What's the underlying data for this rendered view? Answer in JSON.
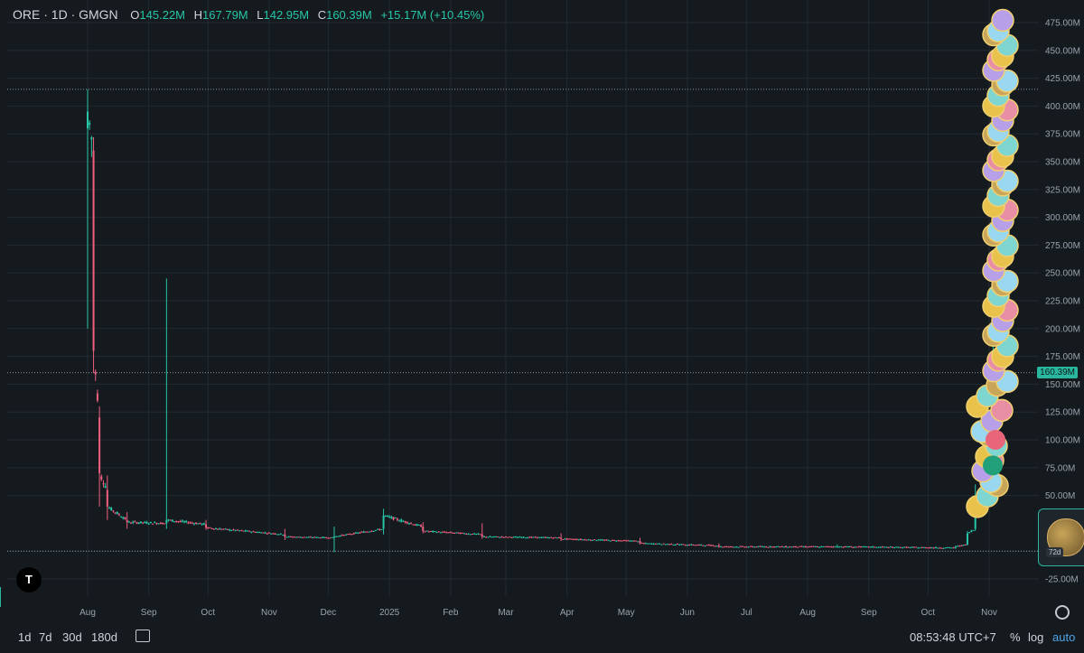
{
  "header": {
    "symbol": "ORE · 1D · GMGN",
    "o_label": "O",
    "o_value": "145.22M",
    "h_label": "H",
    "h_value": "167.79M",
    "l_label": "L",
    "l_value": "142.95M",
    "c_label": "C",
    "c_value": "160.39M",
    "change": "+15.17M (+10.45%)"
  },
  "price_tag": "160.39M",
  "logo": "T",
  "side_card": {
    "badge": "72d"
  },
  "bottom": {
    "ranges": [
      "1d",
      "7d",
      "30d",
      "180d"
    ],
    "time": "08:53:48 UTC+7",
    "percent": "%",
    "log": "log",
    "auto": "auto"
  },
  "colors": {
    "up": "#26c6a6",
    "down": "#ef5f7f",
    "grid": "#222a31",
    "text": "#9aa3ad",
    "tag": "#2ab7a0"
  },
  "chart_data": {
    "type": "candlestick",
    "y_unit": "M",
    "ylim": [
      -25,
      487
    ],
    "y_ticks": [
      475,
      450,
      425,
      400,
      375,
      350,
      325,
      300,
      275,
      250,
      225,
      200,
      175,
      150,
      125,
      100,
      75,
      50,
      -25
    ],
    "y_tick_labels": [
      "475.00M",
      "450.00M",
      "425.00M",
      "400.00M",
      "375.00M",
      "350.00M",
      "325.00M",
      "300.00M",
      "275.00M",
      "250.00M",
      "225.00M",
      "200.00M",
      "175.00M",
      "150.00M",
      "125.00M",
      "100.00M",
      "75.00M",
      "50.00M",
      "-25.00M"
    ],
    "x_labels": [
      "Aug",
      "Sep",
      "Oct",
      "Nov",
      "Dec",
      "2025",
      "Feb",
      "Mar",
      "Apr",
      "May",
      "Jun",
      "Jul",
      "Aug",
      "Sep",
      "Oct",
      "Nov"
    ],
    "x_label_days": [
      0,
      31,
      61,
      92,
      122,
      153,
      184,
      212,
      243,
      273,
      304,
      334,
      365,
      396,
      426,
      457
    ],
    "last_close": 160.39,
    "high_marker": 415,
    "zero_line": 0,
    "key_points": [
      {
        "day": 0,
        "open": 380,
        "high": 415,
        "low": 200,
        "close": 395
      },
      {
        "day": 3,
        "open": 360,
        "high": 372,
        "low": 160,
        "close": 180
      },
      {
        "day": 6,
        "open": 120,
        "high": 130,
        "low": 40,
        "close": 70
      },
      {
        "day": 10,
        "open": 55,
        "high": 68,
        "low": 28,
        "close": 40
      },
      {
        "day": 20,
        "open": 28,
        "high": 35,
        "low": 20,
        "close": 26
      },
      {
        "day": 40,
        "open": 25,
        "high": 245,
        "low": 20,
        "close": 28
      },
      {
        "day": 60,
        "open": 24,
        "high": 28,
        "low": 19,
        "close": 21
      },
      {
        "day": 100,
        "open": 15,
        "high": 20,
        "low": 10,
        "close": 13
      },
      {
        "day": 125,
        "open": 12,
        "high": 22,
        "low": -1,
        "close": 13
      },
      {
        "day": 150,
        "open": 20,
        "high": 38,
        "low": 15,
        "close": 32
      },
      {
        "day": 170,
        "open": 22,
        "high": 26,
        "low": 16,
        "close": 18
      },
      {
        "day": 200,
        "open": 15,
        "high": 25,
        "low": 11,
        "close": 13
      },
      {
        "day": 240,
        "open": 12,
        "high": 16,
        "low": 9,
        "close": 11
      },
      {
        "day": 280,
        "open": 9,
        "high": 12,
        "low": 6,
        "close": 7
      },
      {
        "day": 320,
        "open": 5,
        "high": 7,
        "low": 3,
        "close": 4
      },
      {
        "day": 380,
        "open": 4,
        "high": 6,
        "low": 3,
        "close": 4
      },
      {
        "day": 440,
        "open": 3,
        "high": 5,
        "low": 2,
        "close": 4
      },
      {
        "day": 446,
        "open": 6,
        "high": 18,
        "low": 5,
        "close": 16
      },
      {
        "day": 450,
        "open": 20,
        "high": 60,
        "low": 18,
        "close": 48
      },
      {
        "day": 455,
        "open": 48,
        "high": 90,
        "low": 40,
        "close": 80
      },
      {
        "day": 459,
        "open": 120,
        "high": 200,
        "low": 110,
        "close": 180
      },
      {
        "day": 462,
        "open": 145.22,
        "high": 167.79,
        "low": 142.95,
        "close": 160.39
      }
    ]
  }
}
